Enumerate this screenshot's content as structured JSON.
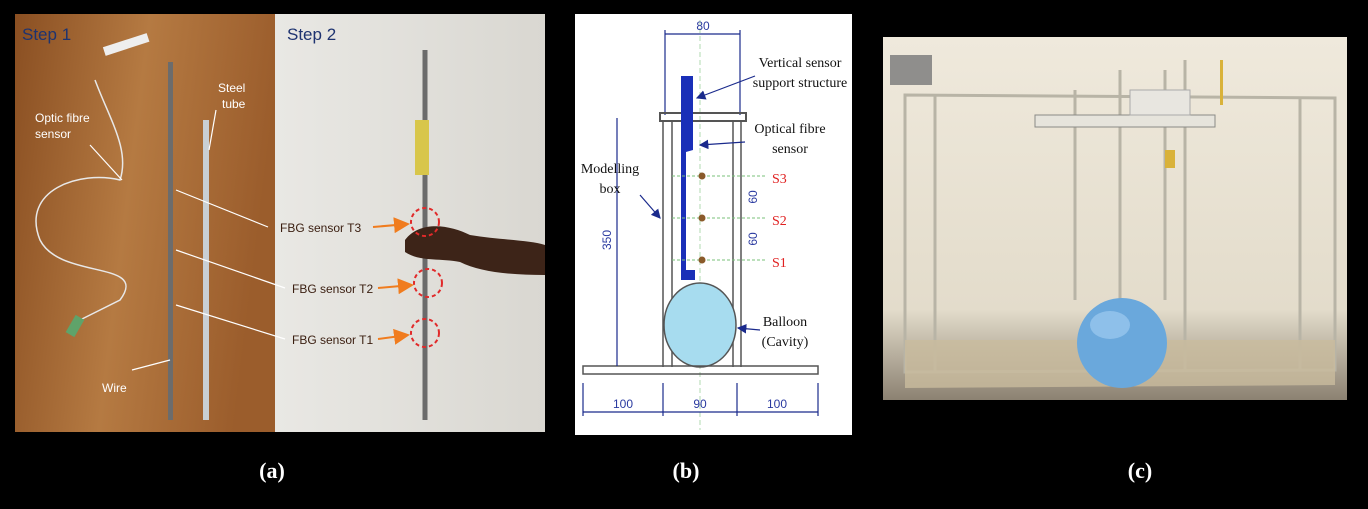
{
  "panel_a": {
    "label": "(a)",
    "step1": "Step 1",
    "step2": "Step 2",
    "optic_fibre_sensor": [
      "Optic fibre",
      "sensor"
    ],
    "steel_tube": [
      "Steel",
      "tube"
    ],
    "wire": "Wire",
    "fbg_t3": "FBG sensor T3",
    "fbg_t2": "FBG sensor T2",
    "fbg_t1": "FBG sensor T1"
  },
  "panel_b": {
    "label": "(b)",
    "top_width": "80",
    "support": [
      "Vertical sensor",
      "support structure"
    ],
    "fibre": [
      "Optical fibre",
      "sensor"
    ],
    "box": [
      "Modelling",
      "box"
    ],
    "s3": "S3",
    "s2": "S2",
    "s1": "S1",
    "spacing_upper": "60",
    "spacing_lower": "60",
    "height": "350",
    "balloon": [
      "Balloon",
      "(Cavity)"
    ],
    "base_left": "100",
    "base_mid": "90",
    "base_right": "100"
  },
  "panel_c": {
    "label": "(c)"
  }
}
